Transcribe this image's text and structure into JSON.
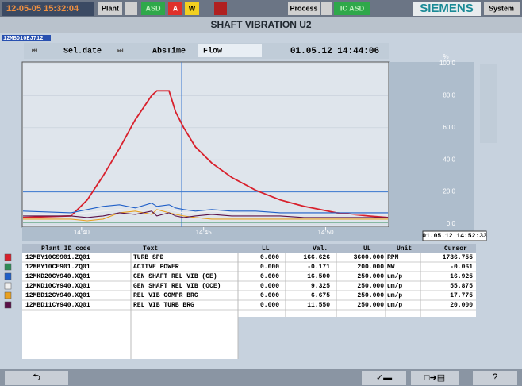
{
  "header": {
    "datetime": "12-05-05 15:32:04",
    "plant": "Plant",
    "asd": "ASD",
    "alarm_a": "A",
    "alarm_w": "W",
    "process": "Process",
    "ic_asd": "IC ASD",
    "brand": "SIEMENS",
    "system": "System",
    "title": "SHAFT VIBRATION U2"
  },
  "tag": "12MBD10EJ712",
  "toolbar": {
    "sel_date": "Sel.date",
    "abs_time": "AbsTime",
    "flow": "Flow",
    "time": "01.05.12 14:44:06"
  },
  "chart_data": {
    "type": "line",
    "y_unit": "%",
    "cursor_time": "01.05.12 14:52:33",
    "limit": 20,
    "grid": true,
    "ylim": [
      0,
      100
    ],
    "yticks": [
      {
        "value": 0,
        "label": "0.0"
      },
      {
        "value": 20,
        "label": "20.0"
      },
      {
        "value": 40,
        "label": "40.0"
      },
      {
        "value": 60,
        "label": "60.0"
      },
      {
        "value": 80,
        "label": "80.0"
      },
      {
        "value": 100,
        "label": "100.0"
      }
    ],
    "xlim": [
      "14:37:36",
      "14:52:33"
    ],
    "xticks": [
      "14:40",
      "14:45",
      "14:50"
    ],
    "x": [
      "14:37:36",
      "14:39:34",
      "14:40:14",
      "14:40:53",
      "14:41:33",
      "14:42:12",
      "14:42:52",
      "14:43:05",
      "14:43:35",
      "14:43:51",
      "14:44:11",
      "14:44:40",
      "14:45:20",
      "14:46:09",
      "14:47:08",
      "14:48:08",
      "14:49:07",
      "14:50:26",
      "14:51:44",
      "14:52:33"
    ],
    "series": [
      {
        "color": "#d8202c",
        "values": [
          4,
          5,
          15,
          30,
          47,
          65,
          80,
          83,
          83,
          70,
          60,
          48,
          38,
          29,
          21,
          15,
          11,
          7,
          5,
          4
        ]
      },
      {
        "color": "#2e8b57",
        "values": [
          1,
          1,
          1,
          1,
          1,
          1,
          1,
          1,
          1,
          1,
          1,
          1,
          1,
          1,
          1,
          1,
          1,
          1,
          1,
          1
        ]
      },
      {
        "color": "#1f5fc8",
        "values": [
          8,
          7,
          9,
          11,
          12,
          10,
          13,
          11,
          12,
          10,
          9,
          8,
          9,
          8,
          8,
          7,
          7,
          7,
          7,
          7
        ]
      },
      {
        "color": "#f0f0f0",
        "values": [
          6,
          6,
          7,
          8,
          9,
          8,
          9,
          8,
          9,
          8,
          7,
          7,
          8,
          7,
          6,
          6,
          6,
          6,
          6,
          6
        ]
      },
      {
        "color": "#e8a020",
        "values": [
          3,
          3,
          2,
          3,
          7,
          8,
          6,
          9,
          7,
          6,
          5,
          4,
          3,
          3,
          3,
          3,
          3,
          3,
          3,
          3
        ]
      },
      {
        "color": "#5a1048",
        "values": [
          5,
          5,
          4,
          5,
          7,
          6,
          8,
          5,
          7,
          5,
          4,
          5,
          6,
          5,
          5,
          5,
          4,
          4,
          4,
          4
        ]
      }
    ]
  },
  "table": {
    "columns": [
      "Plant ID code",
      "Text",
      "LL",
      "Val.",
      "UL",
      "Unit",
      "Cursor"
    ],
    "rows": [
      [
        "12MBY10CS901.ZQ01",
        "TURB SPD",
        "0.000",
        "166.626",
        "3600.000",
        "RPM",
        "1736.755"
      ],
      [
        "12MBY10CE901.ZQ01",
        "ACTIVE POWER",
        "0.000",
        "-0.171",
        "200.000",
        "MW",
        "-0.061"
      ],
      [
        "12MKD20CY940.XQ01",
        "GEN SHAFT REL VIB (CE)",
        "0.000",
        "16.500",
        "250.000",
        "um/p",
        "16.925"
      ],
      [
        "12MKD10CY940.XQ01",
        "GEN SHAFT REL VIB (OCE)",
        "0.000",
        "9.325",
        "250.000",
        "um/p",
        "55.875"
      ],
      [
        "12MBD12CY940.XQ01",
        "REL VIB COMPR BRG",
        "0.000",
        "6.675",
        "250.000",
        "um/p",
        "17.775"
      ],
      [
        "12MBD11CY940.XQ01",
        "REL VIB TURB BRG",
        "0.000",
        "11.550",
        "250.000",
        "um/p",
        "20.000"
      ]
    ]
  },
  "footer": {
    "help": "?"
  }
}
